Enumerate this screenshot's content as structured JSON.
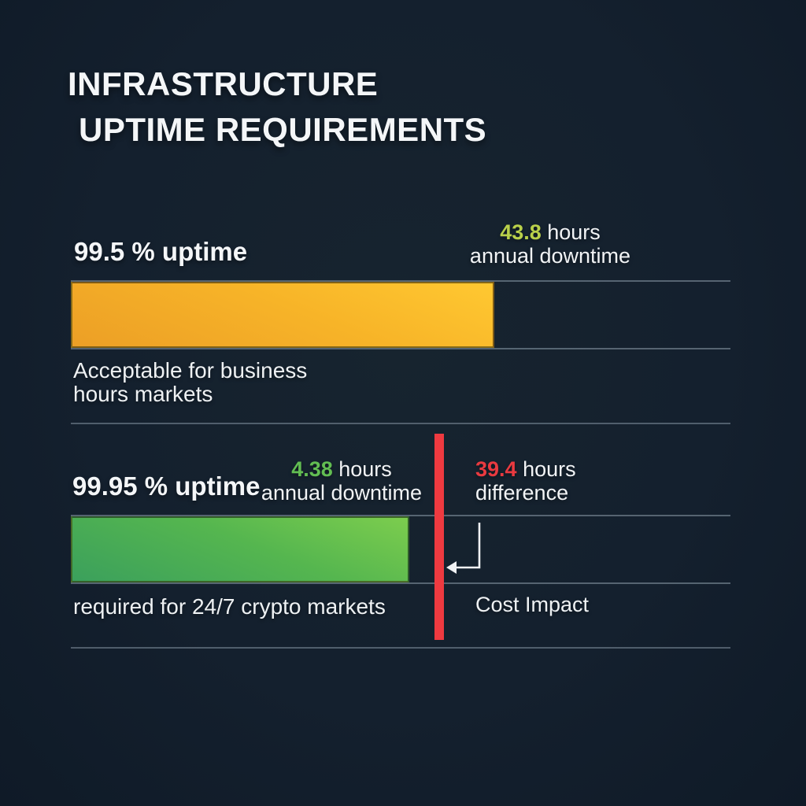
{
  "title": {
    "line1": "INFRASTRUCTURE",
    "line2": "UPTIME REQUIREMENTS"
  },
  "colors": {
    "background": "#14202e",
    "text": "#f3f5f7",
    "lime_number": "#b9d04a",
    "green_number": "#62bd52",
    "red_number": "#e93a40",
    "red_marker": "#ef3a40",
    "bar_yellow_start": "#ec9f26",
    "bar_yellow_end": "#ffc831",
    "bar_green_start": "#3ba05c",
    "bar_green_end": "#7ccd4e",
    "track_line": "#8c9caa"
  },
  "sections": [
    {
      "label": "99.5 % uptime",
      "value": "43.8",
      "value_suffix": " hours",
      "value_line2": "annual downtime",
      "caption_line1": "Acceptable for business",
      "caption_line2": "hours markets",
      "bar_percent": 64.2
    },
    {
      "label": "99.95 % uptime",
      "value": "4.38",
      "value_suffix": " hours",
      "value_line2": "annual downtime",
      "caption_line1": "required for 24/7 crypto markets",
      "caption_line2": "",
      "bar_percent": 51.3
    }
  ],
  "difference": {
    "value": "39.4",
    "suffix": " hours",
    "line2": "difference",
    "cost_label": "Cost Impact"
  },
  "chart_data": {
    "type": "bar",
    "orientation": "horizontal",
    "title": "INFRASTRUCTURE UPTIME REQUIREMENTS",
    "categories": [
      "99.5 % uptime",
      "99.95 % uptime"
    ],
    "series": [
      {
        "name": "annual downtime (hours)",
        "values": [
          43.8,
          4.38
        ]
      }
    ],
    "difference_hours": 39.4,
    "annotations": [
      "Acceptable for business hours markets",
      "required for 24/7 crypto markets",
      "39.4 hours difference",
      "Cost Impact"
    ],
    "bar_colors": [
      "#f7b428",
      "#55b64f"
    ],
    "difference_marker_color": "#ef3a40",
    "legend": "none",
    "grid": "off"
  }
}
